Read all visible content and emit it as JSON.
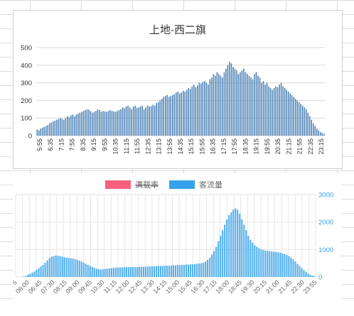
{
  "chart_data": [
    {
      "type": "bar",
      "title": "上地-西二旗",
      "xlabel": "",
      "ylabel": "",
      "ylim": [
        0,
        500
      ],
      "yticks": [
        0,
        100,
        200,
        300,
        400,
        500
      ],
      "grid": true,
      "legend": "none",
      "bar_color": "#4a7fb5",
      "x_start": "5:55",
      "x_step_minutes": 5,
      "x_tick_labels": [
        "5:55",
        "6:35",
        "7:15",
        "7:55",
        "8:35",
        "9:15",
        "9:55",
        "10:35",
        "11:15",
        "11:55",
        "12:35",
        "13:15",
        "13:55",
        "14:35",
        "15:15",
        "15:55",
        "16:35",
        "17:15",
        "17:55",
        "18:35",
        "19:15",
        "19:55",
        "20:35",
        "21:15",
        "21:55",
        "22:35",
        "23:15"
      ],
      "values": [
        35,
        30,
        40,
        45,
        50,
        55,
        60,
        70,
        75,
        80,
        85,
        90,
        95,
        100,
        95,
        90,
        100,
        110,
        105,
        115,
        120,
        110,
        120,
        125,
        130,
        135,
        140,
        145,
        150,
        148,
        140,
        130,
        135,
        140,
        150,
        145,
        135,
        140,
        138,
        135,
        140,
        145,
        140,
        138,
        135,
        140,
        145,
        150,
        160,
        155,
        165,
        170,
        160,
        150,
        165,
        170,
        158,
        160,
        165,
        170,
        150,
        160,
        172,
        165,
        168,
        175,
        170,
        185,
        190,
        200,
        210,
        220,
        225,
        230,
        220,
        225,
        230,
        235,
        245,
        250,
        240,
        245,
        255,
        250,
        260,
        270,
        265,
        280,
        290,
        275,
        285,
        300,
        295,
        305,
        310,
        300,
        290,
        320,
        330,
        350,
        340,
        360,
        350,
        340,
        330,
        360,
        380,
        400,
        420,
        410,
        390,
        380,
        370,
        350,
        360,
        370,
        380,
        360,
        350,
        340,
        330,
        320,
        350,
        360,
        340,
        330,
        300,
        310,
        290,
        300,
        280,
        270,
        260,
        270,
        280,
        275,
        290,
        300,
        280,
        270,
        260,
        250,
        240,
        230,
        220,
        210,
        200,
        190,
        180,
        170,
        160,
        150,
        130,
        110,
        90,
        70,
        55,
        40,
        30,
        20,
        15,
        10
      ]
    },
    {
      "type": "bar",
      "title": "",
      "legend": "top",
      "series": [
        {
          "name": "满载率",
          "color": "#f7617e",
          "hidden": true
        },
        {
          "name": "客流量",
          "color": "#36a2eb",
          "axis": "right"
        }
      ],
      "y_right_ticks": [
        0,
        1000,
        2000,
        3000
      ],
      "ylim_right": [
        0,
        3000
      ],
      "grid": true,
      "x_start": "5:45",
      "x_step_minutes": 5,
      "x_tick_labels": [
        "5",
        "06:00",
        "06:45",
        "07:30",
        "08:15",
        "09:00",
        "09:45",
        "10:30",
        "11:15",
        "12:00",
        "12:45",
        "13:30",
        "14:15",
        "15:00",
        "15:45",
        "16:30",
        "17:15",
        "18:00",
        "18:45",
        "19:30",
        "20:15",
        "21:00",
        "21:45",
        "22:30",
        "23:55"
      ],
      "values": [
        20,
        40,
        80,
        120,
        160,
        200,
        260,
        320,
        380,
        440,
        520,
        600,
        680,
        740,
        760,
        780,
        770,
        760,
        740,
        720,
        700,
        690,
        680,
        670,
        650,
        620,
        600,
        560,
        520,
        480,
        440,
        400,
        360,
        330,
        300,
        280,
        270,
        280,
        290,
        300,
        310,
        320,
        330,
        340,
        340,
        350,
        350,
        350,
        360,
        360,
        360,
        360,
        360,
        360,
        370,
        370,
        370,
        380,
        380,
        380,
        390,
        390,
        390,
        400,
        400,
        400,
        410,
        410,
        410,
        420,
        420,
        420,
        430,
        430,
        440,
        440,
        450,
        450,
        460,
        460,
        470,
        480,
        490,
        500,
        520,
        560,
        620,
        700,
        820,
        950,
        1100,
        1300,
        1500,
        1700,
        1900,
        2100,
        2250,
        2350,
        2450,
        2500,
        2450,
        2300,
        2100,
        1900,
        1700,
        1500,
        1350,
        1250,
        1150,
        1100,
        1050,
        1000,
        980,
        960,
        950,
        940,
        930,
        920,
        910,
        900,
        880,
        860,
        840,
        800,
        760,
        700,
        640,
        560,
        480,
        400,
        320,
        250,
        180,
        120,
        80,
        50,
        30
      ]
    }
  ]
}
